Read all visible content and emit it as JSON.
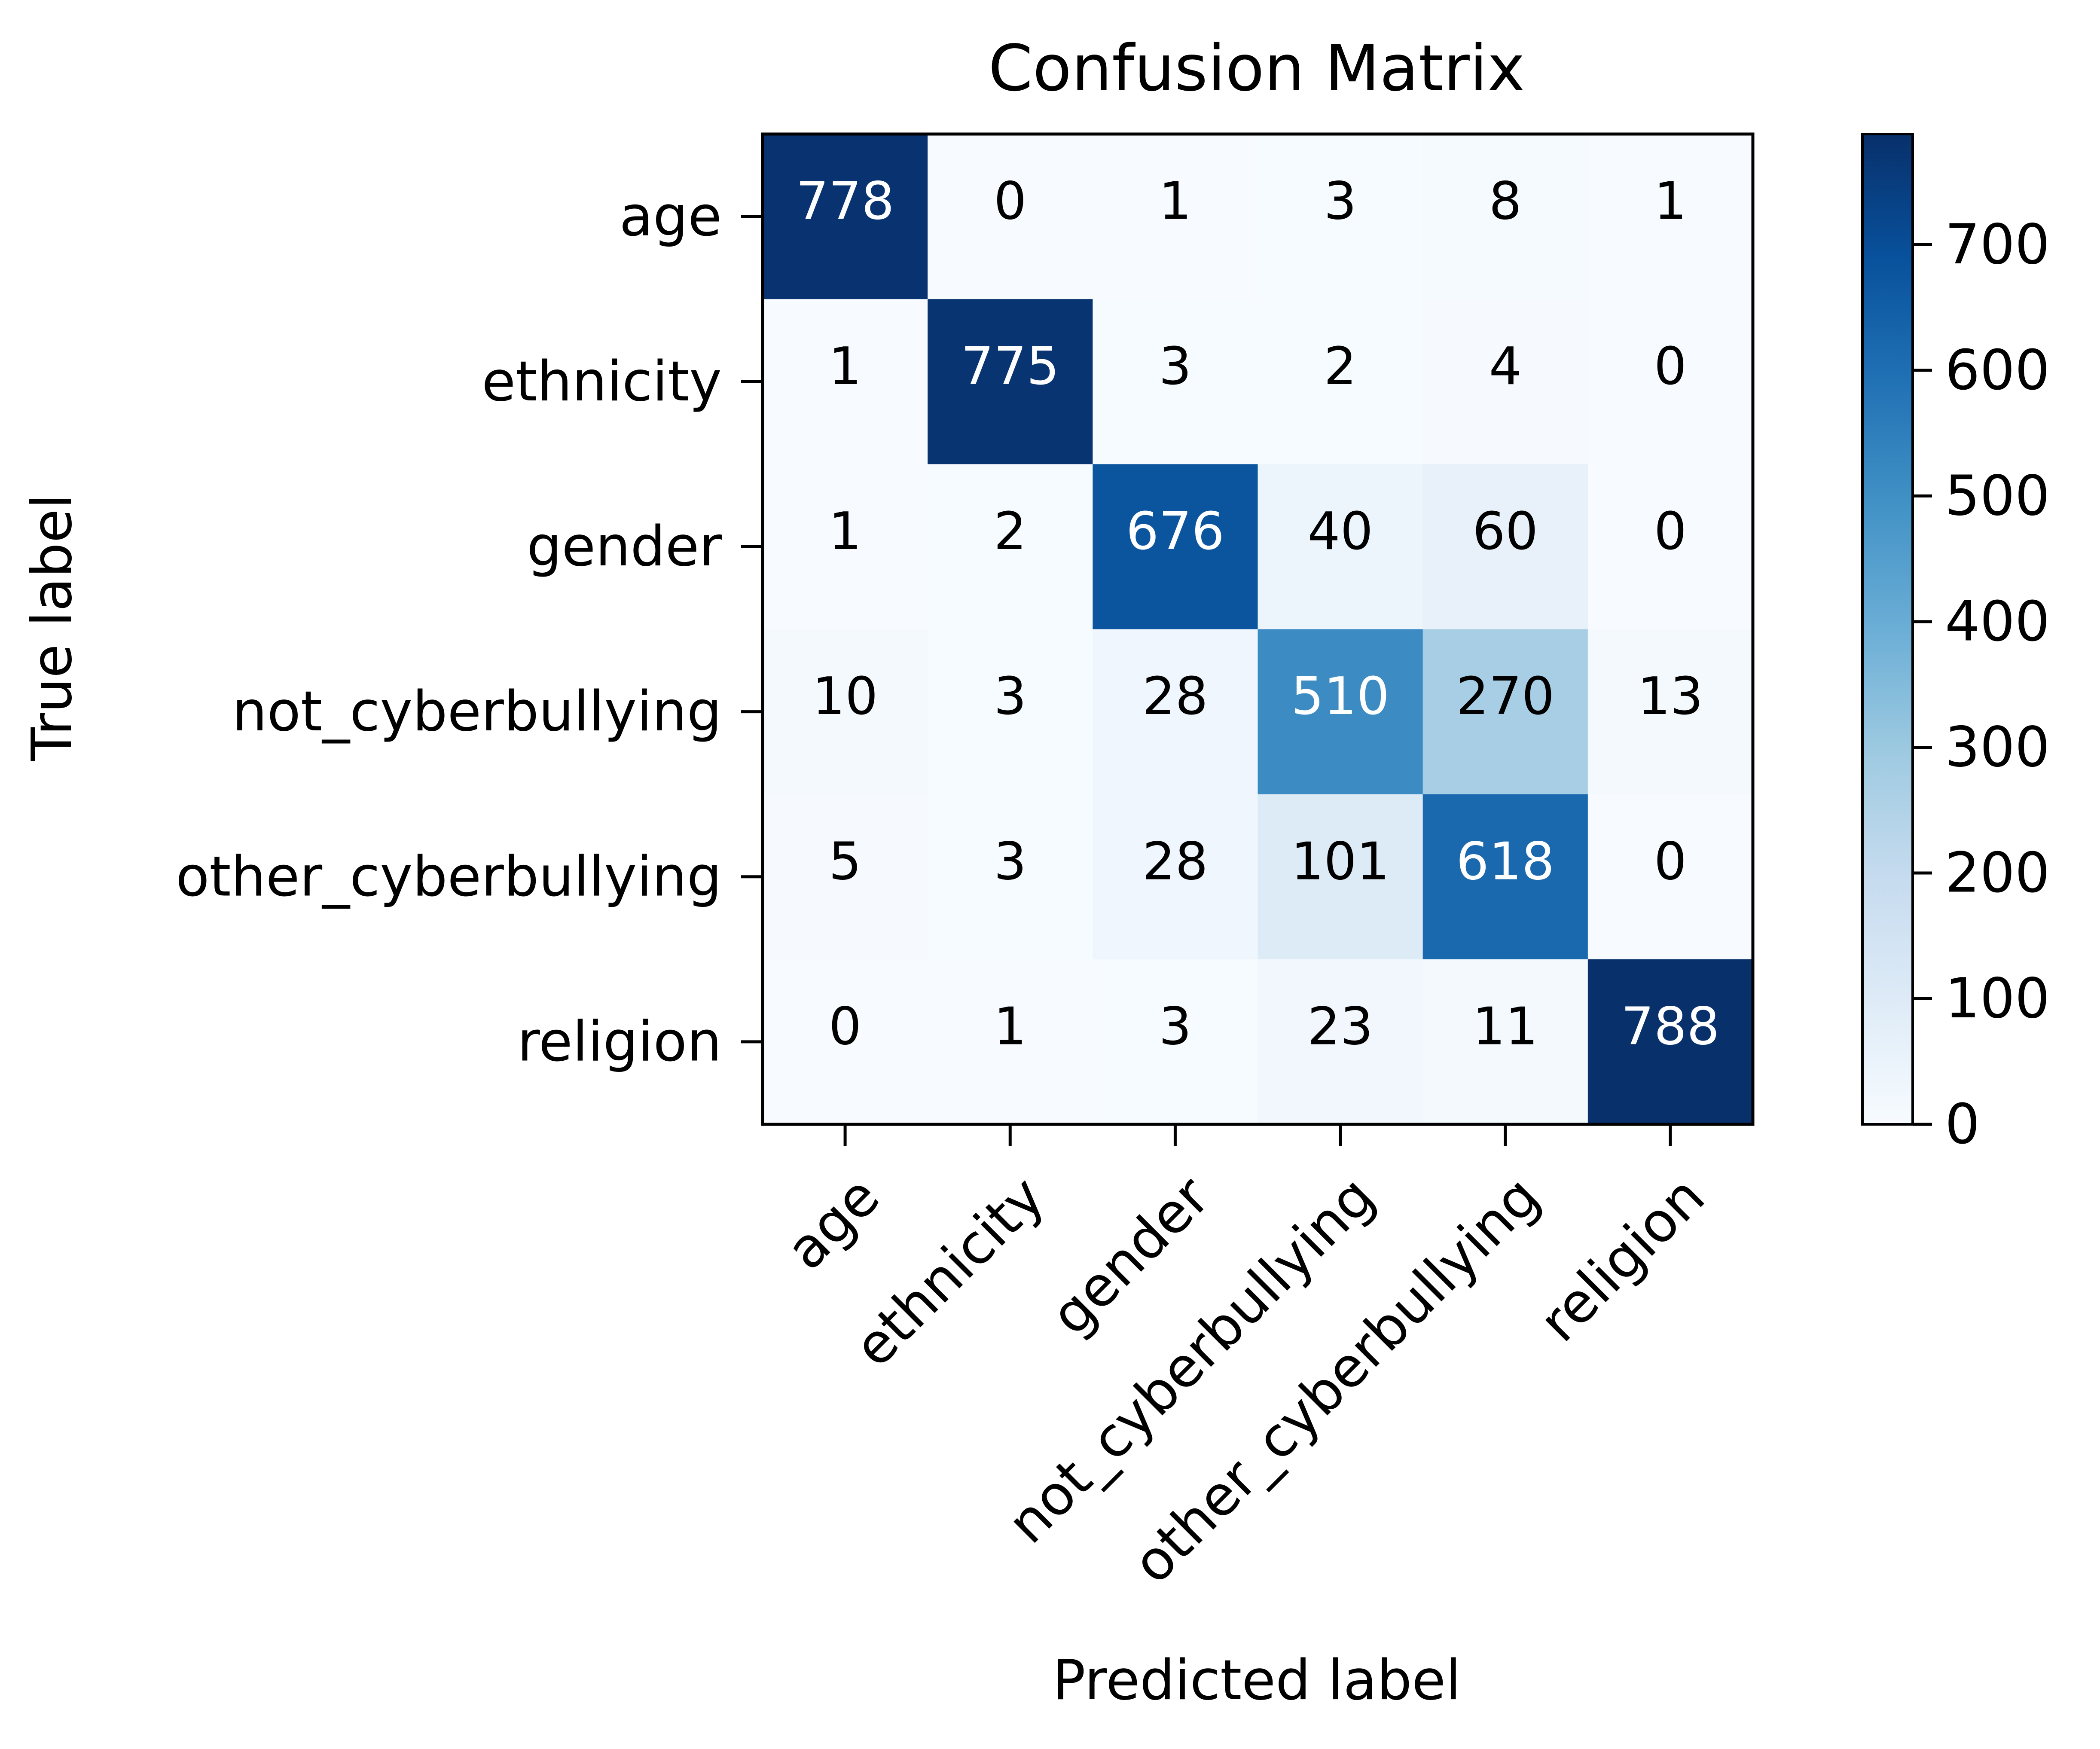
{
  "chart_data": {
    "type": "heatmap",
    "title": "Confusion Matrix",
    "xlabel": "Predicted label",
    "ylabel": "True label",
    "x_categories": [
      "age",
      "ethnicity",
      "gender",
      "not_cyberbullying",
      "other_cyberbullying",
      "religion"
    ],
    "y_categories": [
      "age",
      "ethnicity",
      "gender",
      "not_cyberbullying",
      "other_cyberbullying",
      "religion"
    ],
    "values": [
      [
        778,
        0,
        1,
        3,
        8,
        1
      ],
      [
        1,
        775,
        3,
        2,
        4,
        0
      ],
      [
        1,
        2,
        676,
        40,
        60,
        0
      ],
      [
        10,
        3,
        28,
        510,
        270,
        13
      ],
      [
        5,
        3,
        28,
        101,
        618,
        0
      ],
      [
        0,
        1,
        3,
        23,
        11,
        788
      ]
    ],
    "colormap": "Blues",
    "colormap_stops": [
      "#f7fbff",
      "#deebf7",
      "#c6dbef",
      "#9ecae1",
      "#6baed6",
      "#4292c6",
      "#2171b5",
      "#08519c",
      "#08306b"
    ],
    "color_range": [
      0,
      788
    ],
    "colorbar_ticks": [
      0,
      100,
      200,
      300,
      400,
      500,
      600,
      700
    ],
    "text_color_dark": "#000000",
    "text_color_light": "#ffffff",
    "x_tick_rotation": 45
  }
}
